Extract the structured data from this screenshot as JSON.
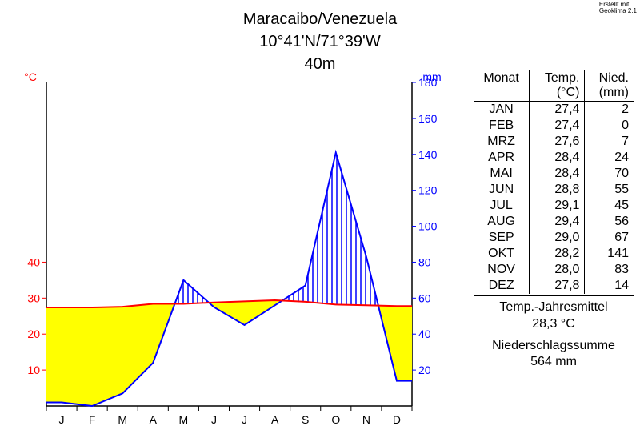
{
  "attribution": "Erstellt mit\nGeoklima 2.1",
  "header": {
    "location": "Maracaibo/Venezuela",
    "coords": "10°41'N/71°39'W",
    "elevation": "40m"
  },
  "chart": {
    "type": "climate-diagram",
    "months": [
      "J",
      "F",
      "M",
      "A",
      "M",
      "J",
      "J",
      "A",
      "S",
      "O",
      "N",
      "D"
    ],
    "temp_label": "°C",
    "precip_label": "mm",
    "temp_color": "#ff0000",
    "precip_color": "#0000ff",
    "fill_color": "#ffff00",
    "hatch_color": "#0000ff",
    "axis_color": "#000000",
    "background_color": "#ffffff",
    "temp_axis": {
      "min": 0,
      "max": 50,
      "ticks": [
        0,
        10,
        20,
        30,
        40
      ],
      "label_fontsize": 14
    },
    "precip_axis": {
      "min": 0,
      "max": 180,
      "ticks": [
        0,
        20,
        40,
        60,
        80,
        100,
        120,
        140,
        160,
        180
      ],
      "label_fontsize": 14
    },
    "temps": [
      27.4,
      27.4,
      27.6,
      28.4,
      28.4,
      28.8,
      29.1,
      29.4,
      29.0,
      28.2,
      28.0,
      27.8
    ],
    "precip": [
      2,
      0,
      7,
      24,
      70,
      55,
      45,
      56,
      67,
      141,
      83,
      14
    ],
    "line_width_temp": 2,
    "line_width_precip": 2,
    "tick_fontsize": 14
  },
  "table": {
    "headers": {
      "month": "Monat",
      "temp": "Temp.\n(°C)",
      "precip": "Nied.\n(mm)"
    },
    "rows": [
      {
        "m": "JAN",
        "t": "27,4",
        "p": "2"
      },
      {
        "m": "FEB",
        "t": "27,4",
        "p": "0"
      },
      {
        "m": "MRZ",
        "t": "27,6",
        "p": "7"
      },
      {
        "m": "APR",
        "t": "28,4",
        "p": "24"
      },
      {
        "m": "MAI",
        "t": "28,4",
        "p": "70"
      },
      {
        "m": "JUN",
        "t": "28,8",
        "p": "55"
      },
      {
        "m": "JUL",
        "t": "29,1",
        "p": "45"
      },
      {
        "m": "AUG",
        "t": "29,4",
        "p": "56"
      },
      {
        "m": "SEP",
        "t": "29,0",
        "p": "67"
      },
      {
        "m": "OKT",
        "t": "28,2",
        "p": "141"
      },
      {
        "m": "NOV",
        "t": "28,0",
        "p": "83"
      },
      {
        "m": "DEZ",
        "t": "27,8",
        "p": "14"
      }
    ],
    "temp_mean_label": "Temp.-Jahresmittel",
    "temp_mean": "28,3 °C",
    "precip_sum_label": "Niederschlagssumme",
    "precip_sum": "564 mm"
  }
}
